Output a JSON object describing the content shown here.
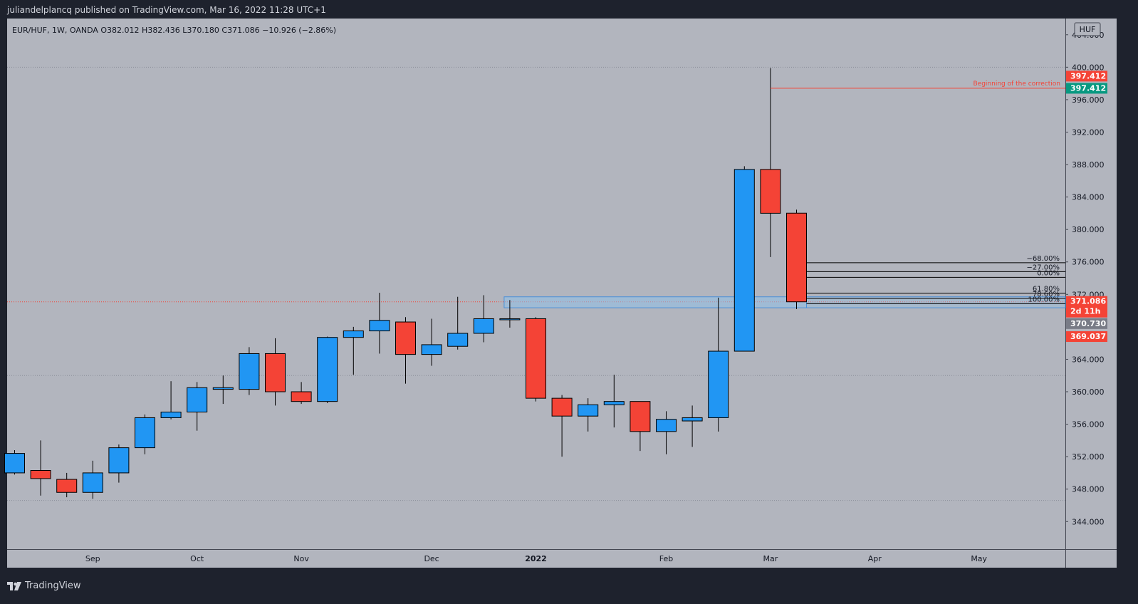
{
  "header": {
    "publisher_line": "juliandelplancq published on TradingView.com, Mar 16, 2022 11:28 UTC+1"
  },
  "footer": {
    "brand": "TradingView",
    "brand_icon": "tradingview-logo-icon"
  },
  "colors": {
    "bull": "#2196f3",
    "bear": "#f44336",
    "plot_bg": "#b2b5be",
    "frame": "#1e222d",
    "fib_line": "#000000",
    "zone_fill": "#90bfe8",
    "correction_line": "#f44336",
    "price_badge_red": "#f44336",
    "price_badge_green": "#089981",
    "price_badge_gray": "#787b86"
  },
  "chart_data": {
    "type": "candlestick",
    "symbol_line": {
      "symbol": "EUR/HUF, 1W, OANDA",
      "open": "O382.012",
      "high": "H382.436",
      "low": "L370.180",
      "close": "C371.086",
      "change": "−10.926 (−2.86%)"
    },
    "currency": "HUF",
    "ylim": [
      340.6,
      406.0
    ],
    "y_ticks": [
      "404.000",
      "400.000",
      "396.000",
      "392.000",
      "388.000",
      "384.000",
      "380.000",
      "376.000",
      "372.000",
      "364.000",
      "360.000",
      "356.000",
      "352.000",
      "348.000",
      "344.000"
    ],
    "grid_levels": [
      400.0,
      362.0,
      346.6
    ],
    "last_price_level": 371.086,
    "x_labels": [
      {
        "label": "Sep",
        "index": 3
      },
      {
        "label": "Oct",
        "index": 7
      },
      {
        "label": "Nov",
        "index": 11
      },
      {
        "label": "Dec",
        "index": 16
      },
      {
        "label": "2022",
        "index": 20,
        "bold": true
      },
      {
        "label": "Feb",
        "index": 25
      },
      {
        "label": "Mar",
        "index": 29
      },
      {
        "label": "Apr",
        "index": 33
      },
      {
        "label": "May",
        "index": 37
      }
    ],
    "candles": [
      {
        "o": 350.0,
        "h": 352.8,
        "l": 349.8,
        "c": 352.4
      },
      {
        "o": 350.3,
        "h": 354.0,
        "l": 347.2,
        "c": 349.3
      },
      {
        "o": 349.2,
        "h": 350.0,
        "l": 347.0,
        "c": 347.6
      },
      {
        "o": 347.6,
        "h": 351.5,
        "l": 346.8,
        "c": 350.0
      },
      {
        "o": 350.0,
        "h": 353.5,
        "l": 348.8,
        "c": 353.1
      },
      {
        "o": 353.1,
        "h": 357.2,
        "l": 352.3,
        "c": 356.8
      },
      {
        "o": 356.8,
        "h": 361.3,
        "l": 356.6,
        "c": 357.5
      },
      {
        "o": 357.5,
        "h": 361.2,
        "l": 355.2,
        "c": 360.5
      },
      {
        "o": 360.3,
        "h": 362.0,
        "l": 358.5,
        "c": 360.5
      },
      {
        "o": 360.3,
        "h": 365.5,
        "l": 359.6,
        "c": 364.7
      },
      {
        "o": 364.7,
        "h": 366.6,
        "l": 358.3,
        "c": 360.0
      },
      {
        "o": 360.0,
        "h": 361.2,
        "l": 358.5,
        "c": 358.8
      },
      {
        "o": 358.8,
        "h": 366.8,
        "l": 358.6,
        "c": 366.7
      },
      {
        "o": 366.7,
        "h": 368.0,
        "l": 362.1,
        "c": 367.5
      },
      {
        "o": 367.5,
        "h": 372.2,
        "l": 364.7,
        "c": 368.8
      },
      {
        "o": 368.6,
        "h": 369.2,
        "l": 361.0,
        "c": 364.6
      },
      {
        "o": 364.6,
        "h": 369.0,
        "l": 363.2,
        "c": 365.8
      },
      {
        "o": 365.6,
        "h": 371.7,
        "l": 365.2,
        "c": 367.2
      },
      {
        "o": 367.2,
        "h": 371.9,
        "l": 366.1,
        "c": 369.0
      },
      {
        "o": 369.0,
        "h": 371.3,
        "l": 367.9,
        "c": 369.0
      },
      {
        "o": 369.0,
        "h": 369.2,
        "l": 358.8,
        "c": 359.2
      },
      {
        "o": 359.2,
        "h": 359.6,
        "l": 352.0,
        "c": 357.0
      },
      {
        "o": 357.0,
        "h": 359.2,
        "l": 355.1,
        "c": 358.4
      },
      {
        "o": 358.4,
        "h": 362.1,
        "l": 355.6,
        "c": 358.8
      },
      {
        "o": 358.8,
        "h": 358.8,
        "l": 352.7,
        "c": 355.1
      },
      {
        "o": 355.1,
        "h": 357.6,
        "l": 352.3,
        "c": 356.6
      },
      {
        "o": 356.4,
        "h": 358.3,
        "l": 353.2,
        "c": 356.8
      },
      {
        "o": 356.8,
        "h": 371.6,
        "l": 355.1,
        "c": 365.0
      },
      {
        "o": 365.0,
        "h": 387.8,
        "l": 365.0,
        "c": 387.4
      },
      {
        "o": 387.4,
        "h": 399.9,
        "l": 376.6,
        "c": 382.0
      },
      {
        "o": 382.012,
        "h": 382.436,
        "l": 370.18,
        "c": 371.086
      }
    ],
    "annotations": {
      "correction_label": "Beginning of the correction",
      "correction_level": 397.412,
      "fib_levels": [
        {
          "label": "−68.00%",
          "price": 375.9
        },
        {
          "label": "−27.00%",
          "price": 374.8
        },
        {
          "label": "0.00%",
          "price": 374.1
        },
        {
          "label": "61.80%",
          "price": 372.15
        },
        {
          "label": "78.60%",
          "price": 371.5
        },
        {
          "label": "100.00%",
          "price": 370.85
        }
      ],
      "zone_top": 371.7,
      "zone_bottom": 370.35
    },
    "price_badges": [
      {
        "text": "397.412",
        "price": 398.9,
        "color": "#f44336"
      },
      {
        "text": "397.412",
        "price": 397.4,
        "color": "#089981"
      },
      {
        "text": "371.086",
        "price": 371.086,
        "color": "#f44336",
        "extra": "2d 11h"
      },
      {
        "text": "370.730",
        "price": 368.4,
        "color": "#787b86"
      },
      {
        "text": "369.037",
        "price": 366.8,
        "color": "#f44336"
      }
    ]
  }
}
